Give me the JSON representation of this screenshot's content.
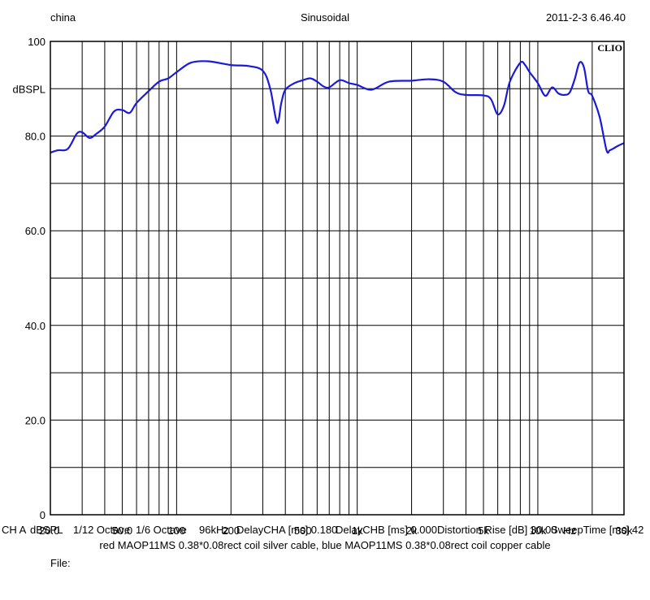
{
  "header": {
    "left": "china",
    "center": "Sinusoidal",
    "right": "2011-2-3 6.46.40"
  },
  "brand": "CLIO",
  "colors": {
    "curve": "#1a1adc",
    "grid": "#000000",
    "background": "#ffffff"
  },
  "chart_data": {
    "type": "line",
    "ylabel": "dBSPL",
    "xlabel": "Hz",
    "xscale": "log",
    "xlim": [
      20,
      30000
    ],
    "ylim": [
      0,
      100
    ],
    "y_ticks": [
      {
        "value": 0,
        "label": "0"
      },
      {
        "value": 20,
        "label": "20.0"
      },
      {
        "value": 40,
        "label": "40.0"
      },
      {
        "value": 60,
        "label": "60.0"
      },
      {
        "value": 80,
        "label": "80.0"
      },
      {
        "value": 100,
        "label": "100"
      }
    ],
    "x_ticks": [
      {
        "value": 20,
        "label": "20.0"
      },
      {
        "value": 50,
        "label": "50.0"
      },
      {
        "value": 100,
        "label": "100"
      },
      {
        "value": 200,
        "label": "200"
      },
      {
        "value": 500,
        "label": "500"
      },
      {
        "value": 1000,
        "label": "1k"
      },
      {
        "value": 2000,
        "label": "2k"
      },
      {
        "value": 5000,
        "label": "5k"
      },
      {
        "value": 10000,
        "label": "10k"
      },
      {
        "value": 30000,
        "label": "30k"
      }
    ],
    "series": [
      {
        "x": [
          20,
          22,
          25,
          28,
          30,
          33,
          36,
          40,
          45,
          50,
          55,
          60,
          70,
          80,
          90,
          100,
          120,
          150,
          200,
          250,
          300,
          330,
          360,
          380,
          400,
          450,
          500,
          550,
          600,
          650,
          700,
          800,
          900,
          1000,
          1200,
          1500,
          2000,
          2500,
          3000,
          3500,
          4000,
          5000,
          5500,
          6000,
          6500,
          7000,
          8000,
          8500,
          9000,
          10000,
          11000,
          12000,
          13000,
          14000,
          15000,
          16000,
          17000,
          18000,
          19000,
          20000,
          22000,
          24000,
          25000,
          26000,
          28000,
          30000
        ],
        "y": [
          76.5,
          77.0,
          77.3,
          80.5,
          80.8,
          79.6,
          80.5,
          82.0,
          85.2,
          85.5,
          84.9,
          87.0,
          89.5,
          91.5,
          92.2,
          93.5,
          95.5,
          95.8,
          95.0,
          94.8,
          93.8,
          90.0,
          82.8,
          87.0,
          89.8,
          91.2,
          91.8,
          92.2,
          91.5,
          90.5,
          90.3,
          91.8,
          91.2,
          90.8,
          89.8,
          91.5,
          91.7,
          92.0,
          91.5,
          89.3,
          88.7,
          88.6,
          87.8,
          84.6,
          86.5,
          91.5,
          95.5,
          95.0,
          93.5,
          91.2,
          88.5,
          90.3,
          89.0,
          88.7,
          89.2,
          92.0,
          95.5,
          94.5,
          89.5,
          88.5,
          84.0,
          77.0,
          77.0,
          77.3,
          78.0,
          78.5
        ]
      }
    ]
  },
  "footer": {
    "channel": "CH A",
    "unit": "dBSPL",
    "octave1": "1/12 Octave",
    "octave2": "1/6 Octave",
    "rate": "96kHz",
    "delay_a": "DelayCHA [ms] 0.180",
    "delay_b": "DelayCHB [ms] 0.000",
    "distortion": "Distortion Rise [dB] 30.00",
    "sweep": "SweepTime [ms] 42",
    "legend": "red MAOP11MS 0.38*0.08rect coil silver cable, blue MAOP11MS 0.38*0.08rect coil copper cable",
    "file_label": "File:"
  }
}
